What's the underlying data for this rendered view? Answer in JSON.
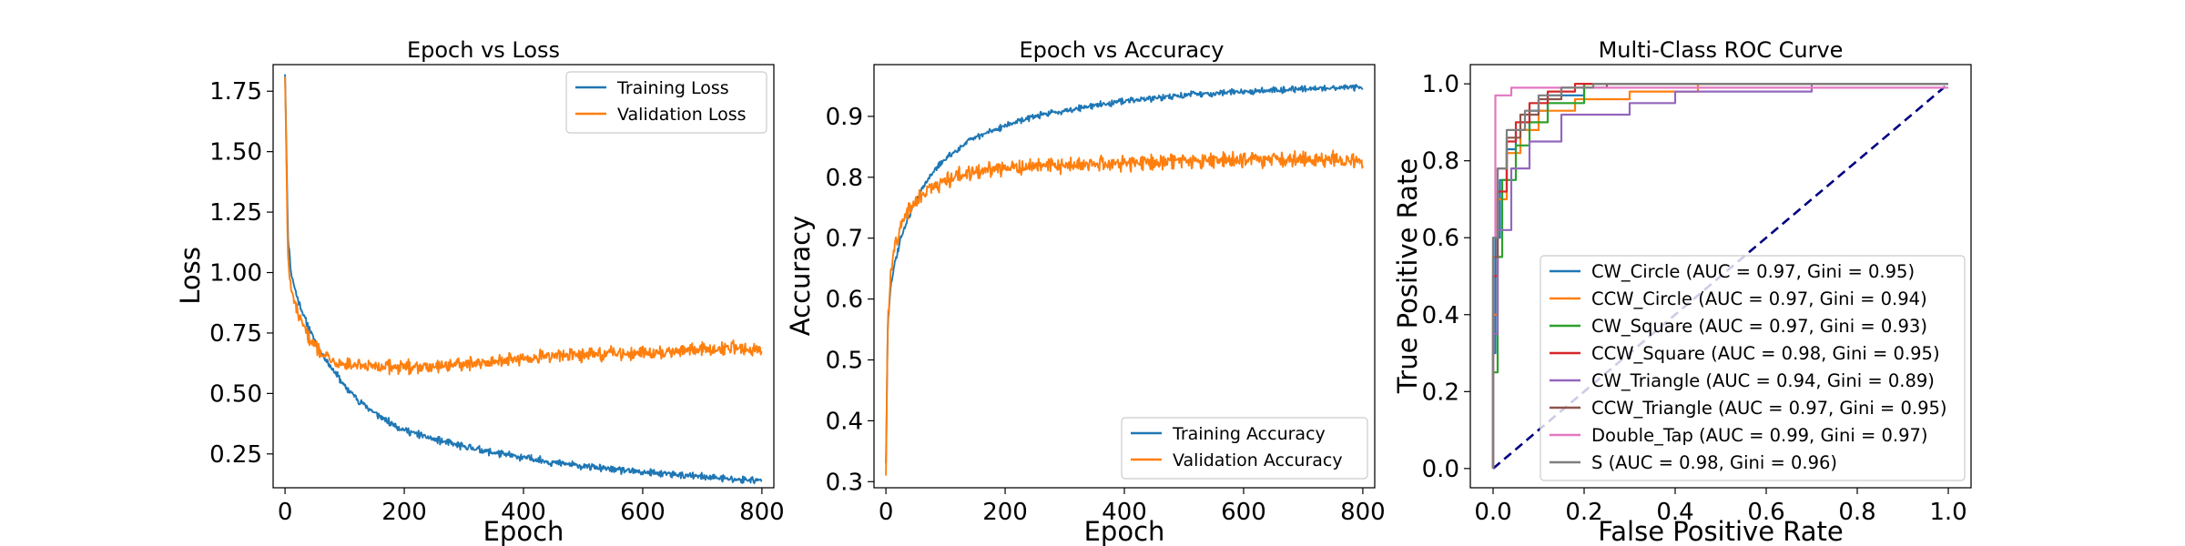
{
  "chart_data": [
    {
      "type": "line",
      "title": "Epoch vs Loss",
      "xlabel": "Epoch",
      "ylabel": "Loss",
      "xlim": [
        -20,
        820
      ],
      "ylim": [
        0.11,
        1.86
      ],
      "xticks": [
        0,
        200,
        400,
        600,
        800
      ],
      "xtick_labels": [
        "0",
        "200",
        "400",
        "600",
        "800"
      ],
      "yticks": [
        0.25,
        0.5,
        0.75,
        1.0,
        1.25,
        1.5,
        1.75
      ],
      "ytick_labels": [
        "0.25",
        "0.50",
        "0.75",
        "1.00",
        "1.25",
        "1.50",
        "1.75"
      ],
      "grid": false,
      "legend_position": "top-right",
      "series": [
        {
          "name": "Training Loss",
          "color": "#1f77b4",
          "x": [
            0,
            5,
            10,
            20,
            30,
            40,
            50,
            60,
            80,
            100,
            125,
            150,
            175,
            200,
            250,
            300,
            350,
            400,
            450,
            500,
            550,
            600,
            650,
            700,
            750,
            800
          ],
          "y": [
            1.82,
            1.15,
            1.0,
            0.9,
            0.83,
            0.77,
            0.72,
            0.67,
            0.6,
            0.53,
            0.47,
            0.42,
            0.38,
            0.35,
            0.31,
            0.28,
            0.255,
            0.235,
            0.215,
            0.2,
            0.185,
            0.175,
            0.165,
            0.155,
            0.145,
            0.14
          ]
        },
        {
          "name": "Validation Loss",
          "color": "#ff7f0e",
          "x": [
            0,
            5,
            10,
            20,
            30,
            40,
            50,
            60,
            80,
            100,
            125,
            150,
            175,
            200,
            250,
            300,
            350,
            400,
            450,
            500,
            550,
            600,
            650,
            700,
            750,
            800
          ],
          "y": [
            1.81,
            1.05,
            0.93,
            0.84,
            0.78,
            0.73,
            0.7,
            0.67,
            0.64,
            0.62,
            0.61,
            0.61,
            0.61,
            0.61,
            0.615,
            0.62,
            0.63,
            0.645,
            0.655,
            0.66,
            0.665,
            0.67,
            0.675,
            0.68,
            0.69,
            0.68
          ]
        }
      ]
    },
    {
      "type": "line",
      "title": "Epoch vs Accuracy",
      "xlabel": "Epoch",
      "ylabel": "Accuracy",
      "xlim": [
        -20,
        820
      ],
      "ylim": [
        0.29,
        0.985
      ],
      "xticks": [
        0,
        200,
        400,
        600,
        800
      ],
      "xtick_labels": [
        "0",
        "200",
        "400",
        "600",
        "800"
      ],
      "yticks": [
        0.3,
        0.4,
        0.5,
        0.6,
        0.7,
        0.8,
        0.9
      ],
      "ytick_labels": [
        "0.3",
        "0.4",
        "0.5",
        "0.6",
        "0.7",
        "0.8",
        "0.9"
      ],
      "grid": false,
      "legend_position": "bottom-right",
      "series": [
        {
          "name": "Training Accuracy",
          "color": "#1f77b4",
          "x": [
            0,
            3,
            8,
            15,
            25,
            40,
            60,
            80,
            100,
            125,
            150,
            175,
            200,
            250,
            300,
            350,
            400,
            450,
            500,
            550,
            600,
            650,
            700,
            750,
            800
          ],
          "y": [
            0.33,
            0.55,
            0.62,
            0.66,
            0.7,
            0.74,
            0.78,
            0.81,
            0.83,
            0.85,
            0.865,
            0.875,
            0.885,
            0.9,
            0.91,
            0.918,
            0.925,
            0.93,
            0.935,
            0.938,
            0.941,
            0.943,
            0.945,
            0.947,
            0.948
          ]
        },
        {
          "name": "Validation Accuracy",
          "color": "#ff7f0e",
          "x": [
            0,
            3,
            8,
            15,
            25,
            40,
            60,
            80,
            100,
            125,
            150,
            175,
            200,
            250,
            300,
            350,
            400,
            450,
            500,
            550,
            600,
            650,
            700,
            750,
            800
          ],
          "y": [
            0.31,
            0.56,
            0.64,
            0.69,
            0.72,
            0.75,
            0.77,
            0.785,
            0.795,
            0.805,
            0.81,
            0.812,
            0.815,
            0.818,
            0.82,
            0.822,
            0.823,
            0.825,
            0.826,
            0.828,
            0.829,
            0.83,
            0.83,
            0.83,
            0.825
          ]
        }
      ]
    },
    {
      "type": "line",
      "title": "Multi-Class ROC Curve",
      "xlabel": "False Positive Rate",
      "ylabel": "True Positive Rate",
      "xlim": [
        -0.05,
        1.05
      ],
      "ylim": [
        -0.05,
        1.05
      ],
      "xticks": [
        0.0,
        0.2,
        0.4,
        0.6,
        0.8,
        1.0
      ],
      "xtick_labels": [
        "0.0",
        "0.2",
        "0.4",
        "0.6",
        "0.8",
        "1.0"
      ],
      "yticks": [
        0.0,
        0.2,
        0.4,
        0.6,
        0.8,
        1.0
      ],
      "ytick_labels": [
        "0.0",
        "0.2",
        "0.4",
        "0.6",
        "0.8",
        "1.0"
      ],
      "grid": false,
      "legend_position": "bottom-right",
      "diagonal": {
        "x": [
          0,
          1
        ],
        "y": [
          0,
          1
        ],
        "color": "#000080",
        "style": "dashed"
      },
      "series": [
        {
          "name": "CW_Circle (AUC = 0.97, Gini = 0.95)",
          "color": "#1f77b4",
          "x": [
            0,
            0,
            0.005,
            0.005,
            0.015,
            0.015,
            0.03,
            0.03,
            0.05,
            0.05,
            0.08,
            0.08,
            0.12,
            0.12,
            0.2,
            0.2,
            1.0
          ],
          "y": [
            0,
            0.3,
            0.3,
            0.6,
            0.6,
            0.75,
            0.75,
            0.83,
            0.83,
            0.88,
            0.88,
            0.93,
            0.93,
            0.97,
            0.97,
            1.0,
            1.0
          ]
        },
        {
          "name": "CCW_Circle (AUC = 0.97, Gini = 0.94)",
          "color": "#ff7f0e",
          "x": [
            0,
            0,
            0.01,
            0.01,
            0.03,
            0.03,
            0.06,
            0.06,
            0.1,
            0.1,
            0.18,
            0.18,
            0.3,
            0.3,
            0.45,
            0.45,
            1.0
          ],
          "y": [
            0,
            0.4,
            0.4,
            0.7,
            0.7,
            0.82,
            0.82,
            0.88,
            0.88,
            0.93,
            0.93,
            0.96,
            0.96,
            0.98,
            0.98,
            1.0,
            1.0
          ]
        },
        {
          "name": "CW_Square (AUC = 0.97, Gini = 0.93)",
          "color": "#2ca02c",
          "x": [
            0,
            0,
            0.01,
            0.01,
            0.02,
            0.02,
            0.05,
            0.05,
            0.08,
            0.08,
            0.12,
            0.12,
            0.2,
            0.2,
            1.0
          ],
          "y": [
            0,
            0.25,
            0.25,
            0.55,
            0.55,
            0.75,
            0.75,
            0.84,
            0.84,
            0.9,
            0.9,
            0.95,
            0.95,
            1.0,
            1.0
          ]
        },
        {
          "name": "CCW_Square (AUC = 0.98, Gini = 0.95)",
          "color": "#d62728",
          "x": [
            0,
            0,
            0.01,
            0.01,
            0.03,
            0.03,
            0.05,
            0.05,
            0.08,
            0.08,
            0.12,
            0.12,
            0.18,
            0.18,
            1.0
          ],
          "y": [
            0,
            0.5,
            0.5,
            0.72,
            0.72,
            0.85,
            0.85,
            0.9,
            0.9,
            0.95,
            0.95,
            0.98,
            0.98,
            1.0,
            1.0
          ]
        },
        {
          "name": "CW_Triangle (AUC = 0.94, Gini = 0.89)",
          "color": "#9467bd",
          "x": [
            0,
            0,
            0.01,
            0.01,
            0.04,
            0.04,
            0.08,
            0.08,
            0.15,
            0.15,
            0.3,
            0.3,
            0.4,
            0.4,
            0.7,
            0.7,
            1.0
          ],
          "y": [
            0,
            0.35,
            0.35,
            0.62,
            0.62,
            0.78,
            0.78,
            0.85,
            0.85,
            0.92,
            0.92,
            0.95,
            0.95,
            0.98,
            0.98,
            1.0,
            1.0
          ]
        },
        {
          "name": "CCW_Triangle (AUC = 0.97, Gini = 0.95)",
          "color": "#8c564b",
          "x": [
            0,
            0,
            0.01,
            0.01,
            0.03,
            0.03,
            0.06,
            0.06,
            0.1,
            0.1,
            0.15,
            0.15,
            0.25,
            0.25,
            1.0
          ],
          "y": [
            0,
            0.55,
            0.55,
            0.78,
            0.78,
            0.86,
            0.86,
            0.92,
            0.92,
            0.96,
            0.96,
            0.99,
            0.99,
            1.0,
            1.0
          ]
        },
        {
          "name": "Double_Tap (AUC = 0.99, Gini = 0.97)",
          "color": "#e377c2",
          "x": [
            0,
            0,
            0.005,
            0.005,
            0.04,
            0.04,
            1.0
          ],
          "y": [
            0,
            0.6,
            0.6,
            0.97,
            0.97,
            0.99,
            0.99
          ]
        },
        {
          "name": "S (AUC = 0.98, Gini = 0.96)",
          "color": "#7f7f7f",
          "x": [
            0,
            0,
            0.01,
            0.01,
            0.03,
            0.03,
            0.07,
            0.07,
            0.1,
            0.1,
            0.15,
            0.15,
            0.22,
            0.22,
            1.0
          ],
          "y": [
            0,
            0.6,
            0.6,
            0.78,
            0.78,
            0.88,
            0.88,
            0.93,
            0.93,
            0.97,
            0.97,
            0.99,
            0.99,
            1.0,
            1.0
          ]
        }
      ]
    }
  ]
}
